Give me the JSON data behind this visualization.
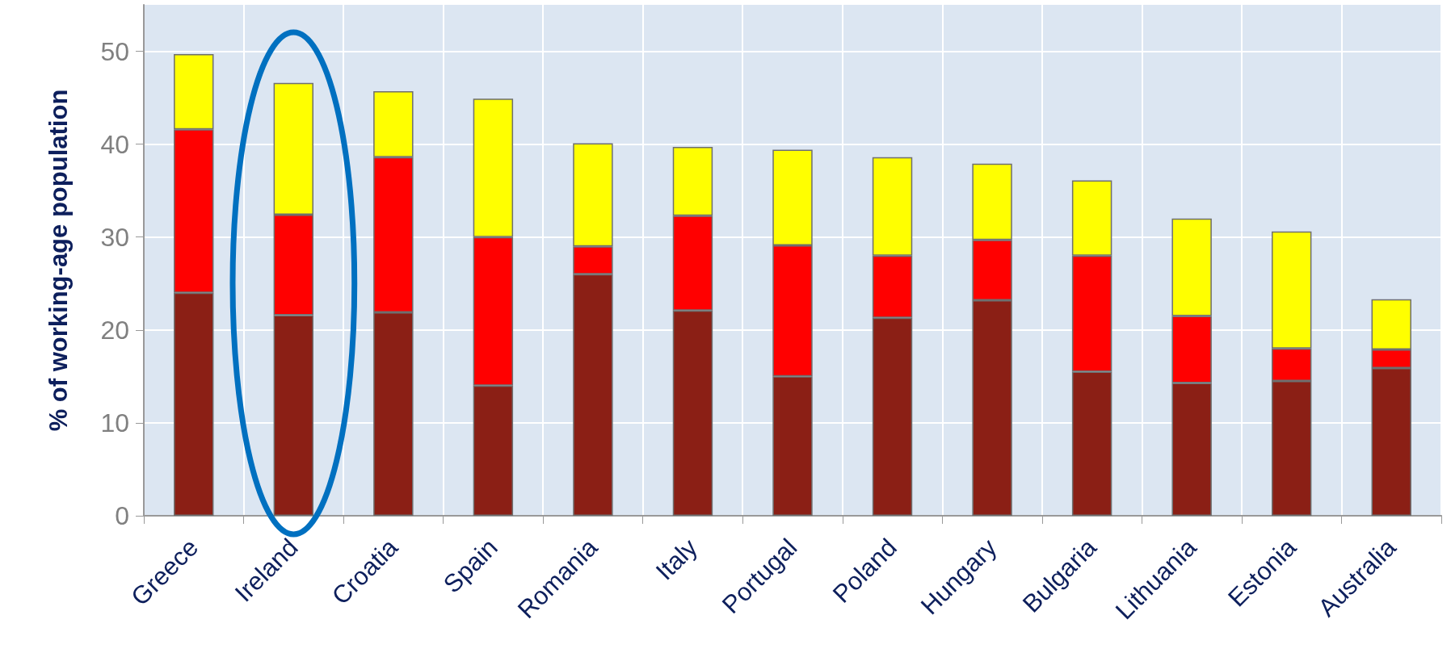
{
  "chart_data": {
    "type": "bar",
    "stacked": true,
    "ylabel": "% of working-age population",
    "categories": [
      "Greece",
      "Ireland",
      "Croatia",
      "Spain",
      "Romania",
      "Italy",
      "Portugal",
      "Poland",
      "Hungary",
      "Bulgaria",
      "Lithuania",
      "Estonia",
      "Australia"
    ],
    "series": [
      {
        "color": "#8b1f15",
        "values": [
          24,
          21.6,
          21.9,
          14,
          26,
          22.1,
          15,
          21.3,
          23.2,
          15.5,
          14.3,
          14.5,
          15.9
        ]
      },
      {
        "color": "#ff0000",
        "values": [
          17.6,
          10.8,
          16.7,
          16,
          3,
          10.2,
          14.1,
          6.7,
          6.5,
          12.5,
          7.2,
          3.5,
          2
        ]
      },
      {
        "color": "#ffff00",
        "values": [
          8.1,
          14.2,
          7.1,
          14.9,
          11.1,
          7.4,
          10.3,
          10.6,
          8.2,
          8.1,
          10.5,
          12.6,
          5.4
        ]
      }
    ],
    "ylim": [
      0,
      55
    ],
    "yticks": [
      0,
      10,
      20,
      30,
      40,
      50
    ],
    "grid": true
  }
}
